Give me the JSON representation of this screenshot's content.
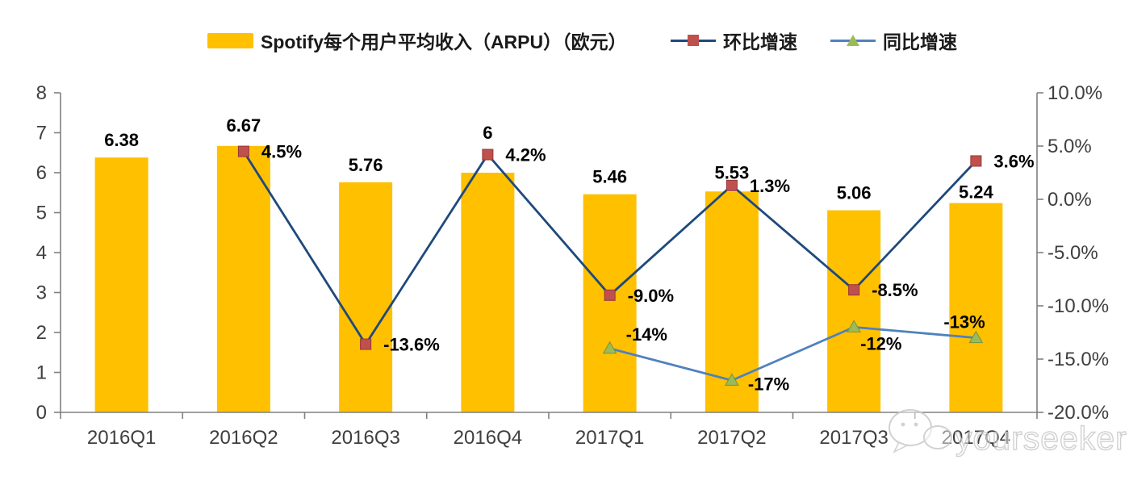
{
  "legend": {
    "items": [
      {
        "label": "Spotify每个用户平均收入（ARPU）（欧元）",
        "swatch": "bar"
      },
      {
        "label": "环比增速",
        "swatch": "line-square"
      },
      {
        "label": "同比增速",
        "swatch": "line-triangle"
      }
    ]
  },
  "watermark": {
    "text": "yourseeker",
    "icon": "wechat-bubbles-icon"
  },
  "chart_data": {
    "type": "bar+line combo, dual axis",
    "categories": [
      "2016Q1",
      "2016Q2",
      "2016Q3",
      "2016Q4",
      "2017Q1",
      "2017Q2",
      "2017Q3",
      "2017Q4"
    ],
    "series": [
      {
        "name": "Spotify每个用户平均收入（ARPU）（欧元）",
        "type": "bar",
        "axis": "left",
        "color": "#FFC000",
        "values": [
          6.38,
          6.67,
          5.76,
          6,
          5.46,
          5.53,
          5.06,
          5.24
        ],
        "labels": [
          "6.38",
          "6.67",
          "5.76",
          "6",
          "5.46",
          "5.53",
          "5.06",
          "5.24"
        ],
        "label_dy": [
          -14,
          -18,
          -14,
          -42,
          -14,
          -16,
          -14,
          -6
        ]
      },
      {
        "name": "环比增速",
        "type": "line",
        "axis": "right",
        "color": "#1F497D",
        "marker": "square",
        "marker_color": "#C0504D",
        "marker_edge": "#943634",
        "values": [
          null,
          4.5,
          -13.6,
          4.2,
          -9.0,
          1.3,
          -8.5,
          3.6
        ],
        "labels": [
          null,
          "4.5%",
          "-13.6%",
          "4.2%",
          "-9.0%",
          "1.3%",
          "-8.5%",
          "3.6%"
        ],
        "label_dx": [
          null,
          22,
          22,
          22,
          22,
          22,
          22,
          22
        ],
        "label_dy": [
          null,
          8,
          8,
          8,
          8,
          8,
          8,
          8
        ]
      },
      {
        "name": "同比增速",
        "type": "line",
        "axis": "right",
        "color": "#4F81BD",
        "marker": "triangle",
        "marker_color": "#9BBB59",
        "marker_edge": "#77933C",
        "values": [
          null,
          null,
          null,
          null,
          -14,
          -17,
          -12,
          -13
        ],
        "labels": [
          null,
          null,
          null,
          null,
          "-14%",
          "-17%",
          "-12%",
          "-13%"
        ],
        "label_dx": [
          null,
          null,
          null,
          null,
          20,
          20,
          8,
          -40
        ],
        "label_dy": [
          null,
          null,
          null,
          null,
          -10,
          12,
          28,
          -12
        ]
      }
    ],
    "left_axis": {
      "min": 0,
      "max": 8,
      "ticks": [
        "0",
        "1",
        "2",
        "3",
        "4",
        "5",
        "6",
        "7",
        "8"
      ]
    },
    "right_axis": {
      "min": -20,
      "max": 10,
      "ticks": [
        "10.0%",
        "5.0%",
        "0.0%",
        "-5.0%",
        "-10.0%",
        "-15.0%",
        "-20.0%"
      ]
    },
    "grid": "off",
    "legend_position": "top",
    "axis_color": "#808080"
  }
}
